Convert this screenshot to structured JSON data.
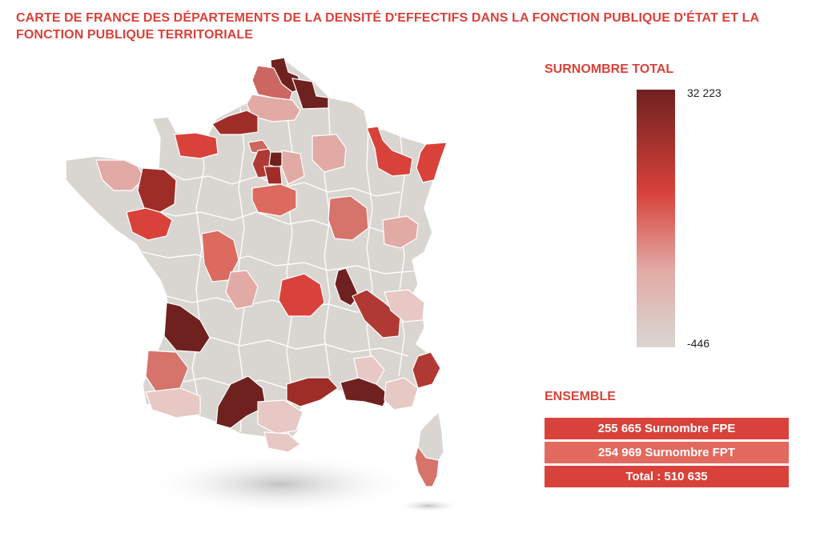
{
  "title": "CARTE DE FRANCE DES DÉPARTEMENTS DE LA DENSITÉ D'EFFECTIFS DANS LA FONCTION PUBLIQUE D'ÉTAT ET LA FONCTION PUBLIQUE TERRITORIALE",
  "legend": {
    "title": "SURNOMBRE TOTAL",
    "max_label": "32 223",
    "min_label": "-446",
    "color_max": "#6f2120",
    "color_mid": "#d8423a",
    "color_min": "#d9d6d2"
  },
  "ensemble": {
    "title": "ENSEMBLE",
    "rows": [
      {
        "label": "255 665 Surnombre FPE",
        "color": "#d8423a"
      },
      {
        "label": "254 969 Surnombre FPT",
        "color": "#e2695d"
      },
      {
        "label": "Total : 510 635",
        "color": "#d8423a"
      }
    ]
  },
  "map": {
    "base_color": "#d9d6d2",
    "border_color": "#ffffff",
    "departments": [
      {
        "shape": "nord",
        "level": "darkest"
      },
      {
        "shape": "nord-east",
        "level": "darkest"
      },
      {
        "shape": "pas-de-calais",
        "level": "medium-light"
      },
      {
        "shape": "somme",
        "level": "light"
      },
      {
        "shape": "seine-maritime",
        "level": "dark"
      },
      {
        "shape": "calvados",
        "level": "medium"
      },
      {
        "shape": "paris-core",
        "level": "darkest"
      },
      {
        "shape": "yvelines",
        "level": "dark"
      },
      {
        "shape": "essonne",
        "level": "dark"
      },
      {
        "shape": "val-doise",
        "level": "medium-light"
      },
      {
        "shape": "seine-et-marne",
        "level": "light"
      },
      {
        "shape": "loiret",
        "level": "medium-light"
      },
      {
        "shape": "marne",
        "level": "light"
      },
      {
        "shape": "meuse-moselle",
        "level": "medium"
      },
      {
        "shape": "bas-rhin",
        "level": "medium"
      },
      {
        "shape": "cotes-armor",
        "level": "light"
      },
      {
        "shape": "ille-et-vilaine",
        "level": "dark"
      },
      {
        "shape": "loire-atlantique",
        "level": "medium"
      },
      {
        "shape": "cote-dor",
        "level": "medium-light"
      },
      {
        "shape": "doubs",
        "level": "light"
      },
      {
        "shape": "vienne",
        "level": "medium-light"
      },
      {
        "shape": "haute-vienne",
        "level": "light"
      },
      {
        "shape": "puy-de-dome",
        "level": "medium"
      },
      {
        "shape": "rhone",
        "level": "darkest"
      },
      {
        "shape": "isere",
        "level": "dark"
      },
      {
        "shape": "savoie",
        "level": "faint"
      },
      {
        "shape": "gironde",
        "level": "darkest"
      },
      {
        "shape": "landes",
        "level": "medium-light"
      },
      {
        "shape": "pyrenees-atlantiques",
        "level": "light"
      },
      {
        "shape": "haute-garonne",
        "level": "darkest"
      },
      {
        "shape": "herault",
        "level": "dark"
      },
      {
        "shape": "bouches-du-rhone",
        "level": "darkest"
      },
      {
        "shape": "var",
        "level": "light"
      },
      {
        "shape": "alpes-maritimes",
        "level": "dark"
      },
      {
        "shape": "vaucluse",
        "level": "faint"
      },
      {
        "shape": "aude",
        "level": "faint"
      },
      {
        "shape": "pyrenees-orientales",
        "level": "faint"
      },
      {
        "shape": "corse-du-sud",
        "level": "light"
      }
    ]
  }
}
